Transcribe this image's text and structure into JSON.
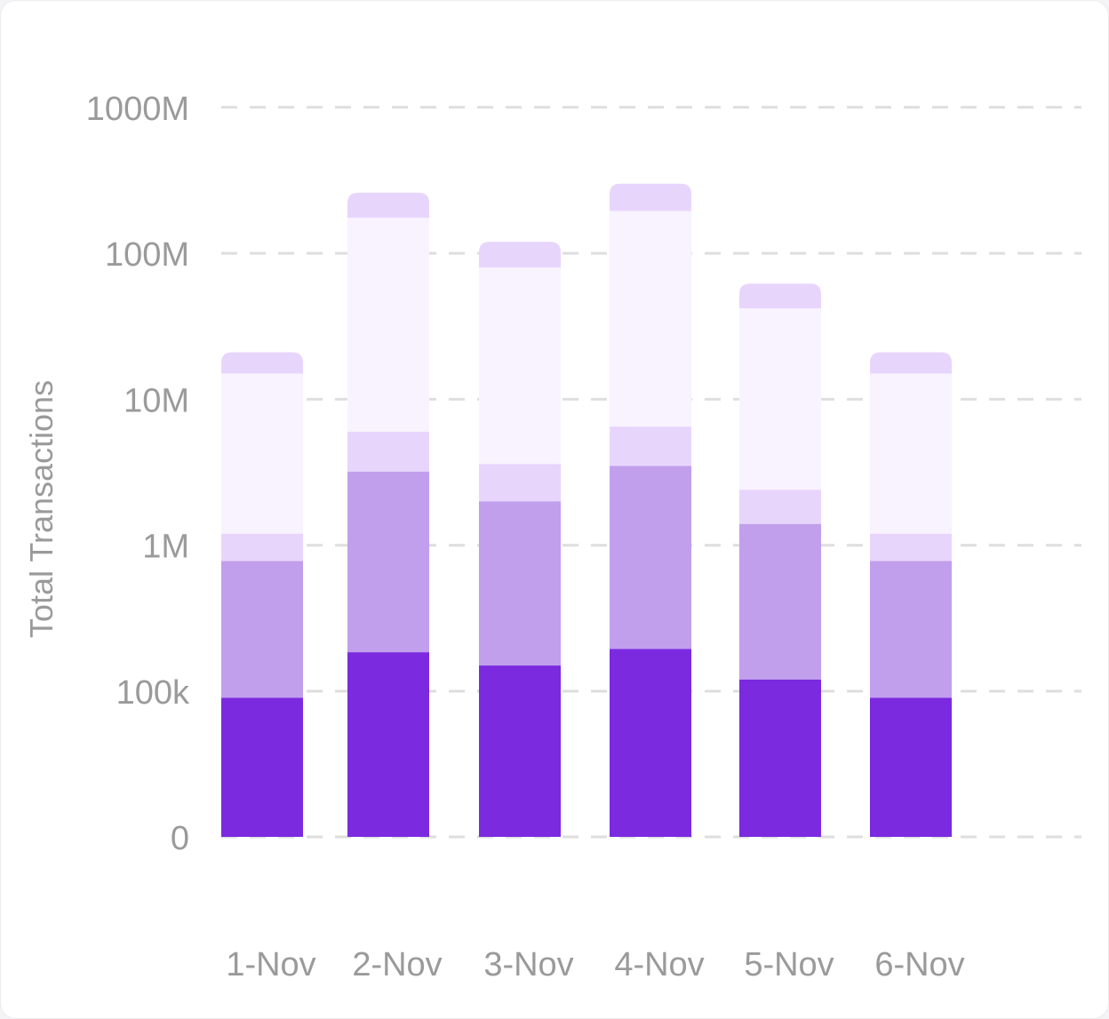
{
  "chart_data": {
    "type": "bar",
    "stacked": true,
    "y_scale": "log",
    "ylabel": "Total Transactions",
    "xlabel": "",
    "title": "",
    "ylim": [
      0,
      1000000000
    ],
    "grid": true,
    "legend": "none",
    "y_ticks": [
      {
        "value": 0,
        "label": "0"
      },
      {
        "value": 100000,
        "label": "100k"
      },
      {
        "value": 1000000,
        "label": "1M"
      },
      {
        "value": 10000000,
        "label": "10M"
      },
      {
        "value": 100000000,
        "label": "100M"
      },
      {
        "value": 1000000000,
        "label": "1000M"
      }
    ],
    "categories": [
      "1-Nov",
      "2-Nov",
      "3-Nov",
      "4-Nov",
      "5-Nov",
      "6-Nov"
    ],
    "stack_tops": [
      [
        90000,
        780000,
        1200000,
        15000000,
        21000000
      ],
      [
        185000,
        3200000,
        6000000,
        175000000,
        260000000
      ],
      [
        150000,
        2000000,
        3600000,
        80000000,
        120000000
      ],
      [
        195000,
        3500000,
        6500000,
        195000000,
        300000000
      ],
      [
        120000,
        1400000,
        2400000,
        42000000,
        62000000
      ],
      [
        90000,
        780000,
        1200000,
        15000000,
        21000000
      ]
    ],
    "segment_colors": [
      "#7b2ae0",
      "#c19fec",
      "#e8d5fc",
      "#f8f3fe",
      "#e8d5fc"
    ]
  }
}
